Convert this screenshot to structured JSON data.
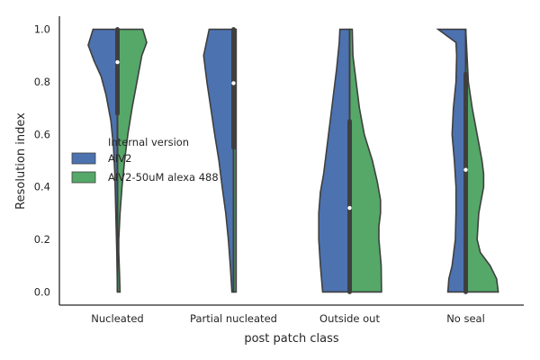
{
  "chart_data": {
    "type": "violin",
    "xlabel": "post patch class",
    "ylabel": "Resolution index",
    "ylim": [
      -0.05,
      1.05
    ],
    "yticks": [
      "0.0",
      "0.2",
      "0.4",
      "0.6",
      "0.8",
      "1.0"
    ],
    "ytick_values": [
      0.0,
      0.2,
      0.4,
      0.6,
      0.8,
      1.0
    ],
    "categories": [
      "Nucleated",
      "Partial nucleated",
      "Outside out",
      "No seal"
    ],
    "legend": {
      "title": "Internal version",
      "placement": "center-left",
      "entries": [
        {
          "name": "AIV2",
          "color": "#4c72b0"
        },
        {
          "name": "AIV2-50uM alexa 488",
          "color": "#55a868"
        }
      ]
    },
    "series": [
      {
        "name": "AIV2",
        "color": "#4c72b0",
        "violins": [
          {
            "category": "Nucleated",
            "range": [
              0.0,
              1.0
            ],
            "profile": [
              [
                0.0,
                0.0
              ],
              [
                0.15,
                0.02
              ],
              [
                0.3,
                0.05
              ],
              [
                0.45,
                0.08
              ],
              [
                0.55,
                0.12
              ],
              [
                0.65,
                0.2
              ],
              [
                0.75,
                0.35
              ],
              [
                0.82,
                0.5
              ],
              [
                0.88,
                0.72
              ],
              [
                0.94,
                0.9
              ],
              [
                1.0,
                0.75
              ]
            ]
          },
          {
            "category": "Partial nucleated",
            "range": [
              0.0,
              1.0
            ],
            "profile": [
              [
                0.0,
                0.05
              ],
              [
                0.1,
                0.1
              ],
              [
                0.2,
                0.16
              ],
              [
                0.3,
                0.24
              ],
              [
                0.4,
                0.35
              ],
              [
                0.5,
                0.45
              ],
              [
                0.6,
                0.58
              ],
              [
                0.7,
                0.7
              ],
              [
                0.8,
                0.82
              ],
              [
                0.9,
                0.92
              ],
              [
                1.0,
                0.75
              ]
            ]
          },
          {
            "category": "Outside out",
            "range": [
              0.0,
              1.0
            ],
            "profile": [
              [
                0.0,
                0.83
              ],
              [
                0.1,
                0.9
              ],
              [
                0.2,
                0.95
              ],
              [
                0.3,
                0.95
              ],
              [
                0.38,
                0.9
              ],
              [
                0.45,
                0.8
              ],
              [
                0.55,
                0.7
              ],
              [
                0.65,
                0.6
              ],
              [
                0.75,
                0.5
              ],
              [
                0.85,
                0.4
              ],
              [
                0.95,
                0.32
              ],
              [
                1.0,
                0.3
              ]
            ]
          },
          {
            "category": "No seal",
            "range": [
              0.0,
              1.0
            ],
            "profile": [
              [
                0.0,
                0.55
              ],
              [
                0.05,
                0.52
              ],
              [
                0.1,
                0.42
              ],
              [
                0.2,
                0.32
              ],
              [
                0.3,
                0.3
              ],
              [
                0.4,
                0.3
              ],
              [
                0.5,
                0.35
              ],
              [
                0.6,
                0.42
              ],
              [
                0.7,
                0.38
              ],
              [
                0.8,
                0.3
              ],
              [
                0.9,
                0.28
              ],
              [
                0.95,
                0.3
              ],
              [
                1.0,
                0.85
              ]
            ]
          }
        ]
      },
      {
        "name": "AIV2-50uM alexa 488",
        "color": "#55a868",
        "violins": [
          {
            "category": "Nucleated",
            "range": [
              0.0,
              1.0
            ],
            "profile": [
              [
                0.0,
                0.08
              ],
              [
                0.08,
                0.06
              ],
              [
                0.15,
                0.04
              ],
              [
                0.2,
                0.04
              ],
              [
                0.3,
                0.08
              ],
              [
                0.4,
                0.14
              ],
              [
                0.5,
                0.22
              ],
              [
                0.6,
                0.32
              ],
              [
                0.7,
                0.45
              ],
              [
                0.8,
                0.6
              ],
              [
                0.9,
                0.75
              ],
              [
                0.95,
                0.9
              ],
              [
                1.0,
                0.78
              ]
            ]
          },
          {
            "category": "Partial nucleated",
            "range": [
              0.0,
              1.0
            ],
            "profile": [
              [
                0.0,
                0.08
              ],
              [
                1.0,
                0.08
              ]
            ]
          },
          {
            "category": "Outside out",
            "range": [
              0.0,
              1.0
            ],
            "profile": [
              [
                0.0,
                0.98
              ],
              [
                0.1,
                0.97
              ],
              [
                0.2,
                0.9
              ],
              [
                0.25,
                0.9
              ],
              [
                0.3,
                0.95
              ],
              [
                0.35,
                0.95
              ],
              [
                0.42,
                0.85
              ],
              [
                0.5,
                0.7
              ],
              [
                0.6,
                0.45
              ],
              [
                0.7,
                0.3
              ],
              [
                0.8,
                0.2
              ],
              [
                0.9,
                0.1
              ],
              [
                1.0,
                0.08
              ]
            ]
          },
          {
            "category": "No seal",
            "range": [
              0.0,
              1.0
            ],
            "profile": [
              [
                0.0,
                1.0
              ],
              [
                0.05,
                0.95
              ],
              [
                0.1,
                0.75
              ],
              [
                0.15,
                0.45
              ],
              [
                0.2,
                0.35
              ],
              [
                0.3,
                0.4
              ],
              [
                0.4,
                0.55
              ],
              [
                0.45,
                0.55
              ],
              [
                0.5,
                0.5
              ],
              [
                0.6,
                0.35
              ],
              [
                0.7,
                0.2
              ],
              [
                0.8,
                0.08
              ],
              [
                1.0,
                0.0
              ]
            ]
          }
        ]
      }
    ],
    "boxes": [
      {
        "category": "Nucleated",
        "q1": 0.68,
        "median": 0.875,
        "q3": 1.0,
        "whisker_low": 0.0,
        "whisker_high": 1.0
      },
      {
        "category": "Partial nucleated",
        "q1": 0.55,
        "median": 0.795,
        "q3": 1.0,
        "whisker_low": 0.0,
        "whisker_high": 1.0
      },
      {
        "category": "Outside out",
        "q1": 0.0,
        "median": 0.32,
        "q3": 0.65,
        "whisker_low": 0.0,
        "whisker_high": 1.0
      },
      {
        "category": "No seal",
        "q1": 0.0,
        "median": 0.465,
        "q3": 0.83,
        "whisker_low": 0.0,
        "whisker_high": 1.0
      }
    ]
  }
}
